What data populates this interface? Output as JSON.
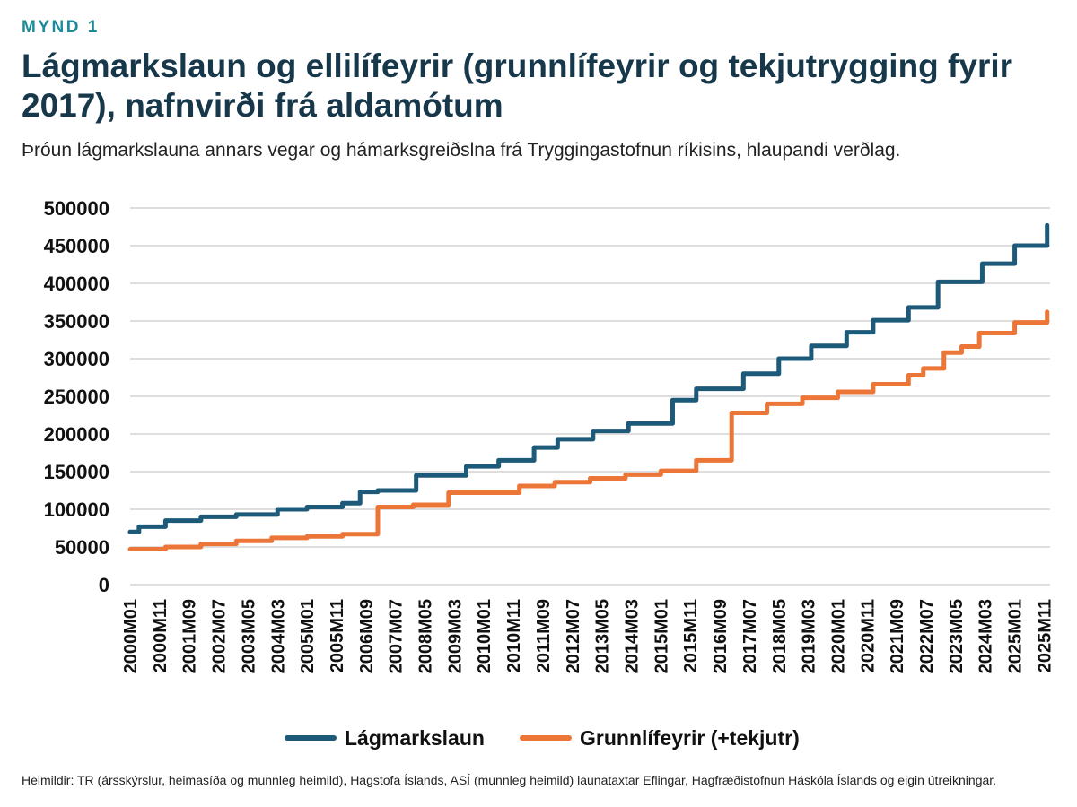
{
  "header": {
    "kicker": "MYND 1",
    "title": "Lágmarkslaun og ellilífeyrir (grunnlífeyrir og tekjutrygging fyrir 2017), nafnvirði frá aldamótum",
    "subtitle": "Þróun lágmarkslauna annars vegar og hámarksgreiðslna frá Tryggingastofnun ríkisins, hlaupandi verðlag."
  },
  "footer": {
    "source": "Heimildir:  TR (ársskýrslur, heimasíða og munnleg heimild), Hagstofa Íslands, ASÍ (munnleg heimild) launataxtar Eflingar, Hagfræðistofnun Háskóla Íslands og eigin útreikningar."
  },
  "colors": {
    "series1": "#1d5a7a",
    "series2": "#ec7638",
    "grid": "#d4d4d4"
  },
  "chart_data": {
    "type": "line",
    "line_style": "step",
    "title": "Lágmarkslaun og ellilífeyrir (grunnlífeyrir og tekjutrygging fyrir 2017), nafnvirði frá aldamótum",
    "xlabel": "",
    "ylabel": "",
    "ylim": [
      0,
      500000
    ],
    "yticks": [
      "500000",
      "450000",
      "400000",
      "350000",
      "300000",
      "250000",
      "200000",
      "150000",
      "100000",
      "50000",
      "0"
    ],
    "grid": true,
    "legend_position": "bottom",
    "x_range": [
      "2000M01",
      "2026M01"
    ],
    "x_tick_labels": [
      "2000M01",
      "2000M11",
      "2001M09",
      "2002M07",
      "2003M05",
      "2004M03",
      "2005M01",
      "2005M11",
      "2006M09",
      "2007M07",
      "2008M05",
      "2009M03",
      "2010M01",
      "2010M11",
      "2011M09",
      "2012M07",
      "2013M05",
      "2014M03",
      "2015M01",
      "2015M11",
      "2016M09",
      "2017M07",
      "2018M05",
      "2019M03",
      "2020M01",
      "2020M11",
      "2021M09",
      "2022M07",
      "2023M05",
      "2024M03",
      "2025M01",
      "2025M11"
    ],
    "series": [
      {
        "name": "Lágmarkslaun",
        "color": "#1d5a7a",
        "points": [
          [
            "2000M01",
            70000
          ],
          [
            "2000M04",
            77000
          ],
          [
            "2001M01",
            85000
          ],
          [
            "2002M01",
            90000
          ],
          [
            "2003M01",
            93000
          ],
          [
            "2004M03",
            100000
          ],
          [
            "2005M01",
            103000
          ],
          [
            "2006M01",
            108000
          ],
          [
            "2006M07",
            123000
          ],
          [
            "2007M01",
            125000
          ],
          [
            "2008M02",
            145000
          ],
          [
            "2009M07",
            157000
          ],
          [
            "2010M06",
            165000
          ],
          [
            "2011M06",
            182000
          ],
          [
            "2012M02",
            193000
          ],
          [
            "2013M02",
            204000
          ],
          [
            "2014M02",
            214000
          ],
          [
            "2015M05",
            245000
          ],
          [
            "2016M01",
            260000
          ],
          [
            "2017M05",
            280000
          ],
          [
            "2018M05",
            300000
          ],
          [
            "2019M04",
            317000
          ],
          [
            "2020M04",
            335000
          ],
          [
            "2021M01",
            351000
          ],
          [
            "2022M01",
            368000
          ],
          [
            "2022M11",
            402000
          ],
          [
            "2024M02",
            426000
          ],
          [
            "2025M01",
            450000
          ],
          [
            "2025M12",
            477000
          ]
        ]
      },
      {
        "name": "Grunnlífeyrir (+tekjutr)",
        "color": "#ec7638",
        "points": [
          [
            "2000M01",
            47000
          ],
          [
            "2001M01",
            50000
          ],
          [
            "2002M01",
            54000
          ],
          [
            "2003M01",
            58000
          ],
          [
            "2004M01",
            62000
          ],
          [
            "2005M01",
            64000
          ],
          [
            "2006M01",
            67000
          ],
          [
            "2007M01",
            103000
          ],
          [
            "2008M01",
            106000
          ],
          [
            "2009M01",
            122000
          ],
          [
            "2011M01",
            131000
          ],
          [
            "2012M01",
            136000
          ],
          [
            "2013M01",
            141000
          ],
          [
            "2014M01",
            146000
          ],
          [
            "2015M01",
            151000
          ],
          [
            "2016M01",
            165000
          ],
          [
            "2017M01",
            228000
          ],
          [
            "2018M01",
            240000
          ],
          [
            "2019M01",
            248000
          ],
          [
            "2020M01",
            256000
          ],
          [
            "2021M01",
            266000
          ],
          [
            "2022M01",
            278000
          ],
          [
            "2022M06",
            287000
          ],
          [
            "2023M01",
            308000
          ],
          [
            "2023M07",
            316000
          ],
          [
            "2024M01",
            334000
          ],
          [
            "2025M01",
            348000
          ],
          [
            "2025M12",
            362000
          ]
        ]
      }
    ]
  }
}
